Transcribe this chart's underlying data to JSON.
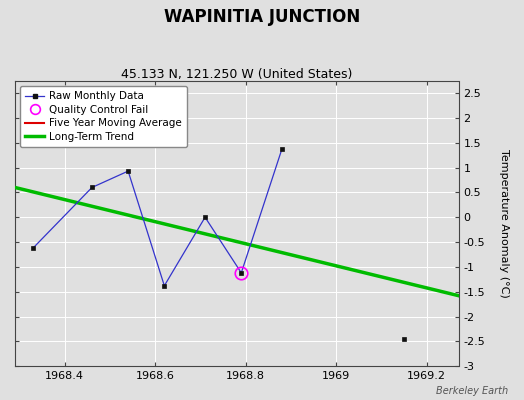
{
  "title": "WAPINITIA JUNCTION",
  "subtitle": "45.133 N, 121.250 W (United States)",
  "ylabel": "Temperature Anomaly (°C)",
  "watermark": "Berkeley Earth",
  "xlim": [
    1968.29,
    1969.27
  ],
  "ylim": [
    -3.0,
    2.75
  ],
  "xticks": [
    1968.4,
    1968.6,
    1968.8,
    1969.0,
    1969.2
  ],
  "yticks": [
    -3,
    -2.5,
    -2,
    -1.5,
    -1,
    -0.5,
    0,
    0.5,
    1,
    1.5,
    2,
    2.5
  ],
  "raw_connected_x": [
    1968.33,
    1968.46,
    1968.54,
    1968.62,
    1968.71,
    1968.79,
    1968.88
  ],
  "raw_connected_y": [
    -0.62,
    0.6,
    0.93,
    -1.38,
    0.0,
    -1.12,
    1.38
  ],
  "isolated_x": [
    1969.15
  ],
  "isolated_y": [
    -2.45
  ],
  "qc_fail_x": [
    1968.79
  ],
  "qc_fail_y": [
    -1.12
  ],
  "trend_x": [
    1968.29,
    1969.27
  ],
  "trend_y": [
    0.6,
    -1.58
  ],
  "background_color": "#e0e0e0",
  "plot_bg_color": "#e0e0e0",
  "raw_line_color": "#3333cc",
  "raw_marker_color": "#111111",
  "raw_marker_size": 3.5,
  "qc_marker_color": "#ff00ff",
  "trend_color": "#00bb00",
  "trend_linewidth": 2.5,
  "moving_avg_color": "#dd0000",
  "grid_color": "#ffffff",
  "grid_linewidth": 0.7,
  "title_fontsize": 12,
  "subtitle_fontsize": 9,
  "tick_fontsize": 8,
  "ylabel_fontsize": 8,
  "legend_fontsize": 7.5
}
